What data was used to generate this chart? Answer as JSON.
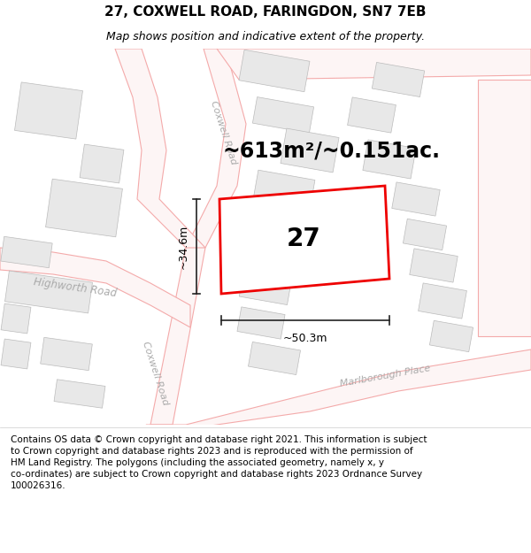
{
  "title": "27, COXWELL ROAD, FARINGDON, SN7 7EB",
  "subtitle": "Map shows position and indicative extent of the property.",
  "footer": "Contains OS data © Crown copyright and database right 2021. This information is subject\nto Crown copyright and database rights 2023 and is reproduced with the permission of\nHM Land Registry. The polygons (including the associated geometry, namely x, y\nco-ordinates) are subject to Crown copyright and database rights 2023 Ordnance Survey\n100026316.",
  "area_label": "~613m²/~0.151ac.",
  "plot_number": "27",
  "dim_width": "~50.3m",
  "dim_height": "~34.6m",
  "road_label_coxwell": "Coxwell Road",
  "road_label_highworth": "Highworth Road",
  "road_label_marlborough": "Marlborough Place",
  "bg_map_color": "#ffffff",
  "road_line_color": "#f4aaaa",
  "road_fill_color": "#fdf5f5",
  "building_fill_color": "#e8e8e8",
  "building_line_color": "#bbbbbb",
  "plot_line_color": "#ee0000",
  "dimension_color": "#222222",
  "title_fontsize": 11,
  "subtitle_fontsize": 9,
  "footer_fontsize": 7.5,
  "area_fontsize": 17,
  "plot_number_fontsize": 20,
  "road_label_fontsize": 8,
  "road_label_color": "#aaaaaa"
}
